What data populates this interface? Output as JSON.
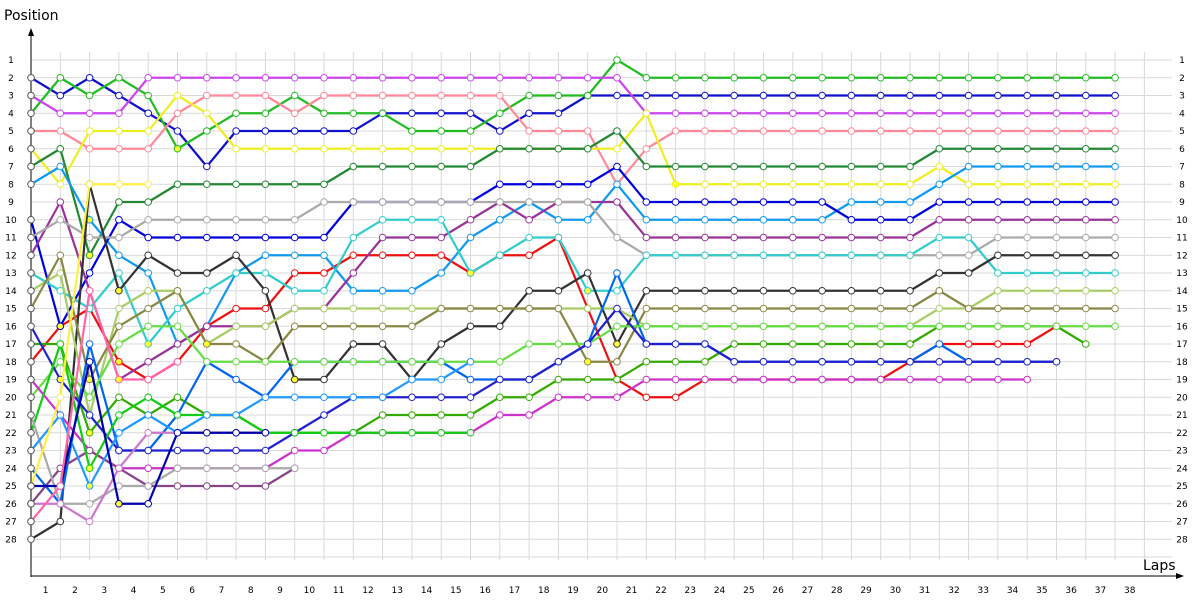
{
  "chart_data": {
    "type": "line",
    "xlabel": "Laps",
    "ylabel": "Position",
    "x_ticks": [
      "1",
      "2",
      "3",
      "4",
      "5",
      "6",
      "7",
      "8",
      "9",
      "10",
      "11",
      "12",
      "13",
      "14",
      "15",
      "16",
      "17",
      "18",
      "19",
      "20",
      "21",
      "22",
      "23",
      "24",
      "25",
      "26",
      "27",
      "28",
      "29",
      "30",
      "31",
      "32",
      "33",
      "34",
      "35",
      "36",
      "37",
      "38"
    ],
    "y_ticks": [
      "1",
      "2",
      "3",
      "4",
      "5",
      "6",
      "7",
      "8",
      "9",
      "10",
      "11",
      "12",
      "13",
      "14",
      "15",
      "16",
      "17",
      "18",
      "19",
      "20",
      "21",
      "22",
      "23",
      "24",
      "25",
      "26",
      "27",
      "28"
    ],
    "xlim": [
      0,
      38
    ],
    "ylim": [
      1,
      28
    ],
    "y_inverted": true,
    "grid": true,
    "marker_fill_running": "#ffffff",
    "marker_fill_pitstop": "#ffff33",
    "series": [
      {
        "color": "#ee1111",
        "positions": [
          18,
          16,
          15,
          18,
          19,
          18,
          16,
          15,
          15,
          13,
          13,
          12,
          12,
          12,
          12,
          13,
          12,
          12,
          11,
          15,
          19,
          20,
          20,
          19,
          19,
          19,
          19,
          19,
          19,
          19,
          18,
          17,
          17,
          17,
          17,
          16
        ]
      },
      {
        "color": "#1111cc",
        "positions": [
          2,
          3,
          2,
          3,
          4,
          5,
          7,
          5,
          5,
          5,
          5,
          5,
          4,
          4,
          4,
          4,
          5,
          4,
          4,
          3,
          3,
          3,
          3,
          3,
          3,
          3,
          3,
          3,
          3,
          3,
          3,
          3,
          3,
          3,
          3,
          3,
          3,
          3
        ]
      },
      {
        "color": "#22bb22",
        "positions": [
          4,
          2,
          3,
          2,
          3,
          6,
          5,
          4,
          4,
          3,
          4,
          4,
          4,
          5,
          5,
          5,
          4,
          3,
          3,
          3,
          1,
          2,
          2,
          2,
          2,
          2,
          2,
          2,
          2,
          2,
          2,
          2,
          2,
          2,
          2,
          2,
          2,
          2
        ]
      },
      {
        "color": "#cc44ee",
        "positions": [
          3,
          4,
          4,
          4,
          2,
          2,
          2,
          2,
          2,
          2,
          2,
          2,
          2,
          2,
          2,
          2,
          2,
          2,
          2,
          2,
          2,
          4,
          4,
          4,
          4,
          4,
          4,
          4,
          4,
          4,
          4,
          4,
          4,
          4,
          4,
          4,
          4,
          4
        ]
      },
      {
        "color": "#ff8899",
        "positions": [
          5,
          5,
          6,
          6,
          6,
          4,
          3,
          3,
          3,
          4,
          3,
          3,
          3,
          3,
          3,
          3,
          3,
          5,
          5,
          5,
          8,
          6,
          5,
          5,
          5,
          5,
          5,
          5,
          5,
          5,
          5,
          5,
          5,
          5,
          5,
          5,
          5,
          5
        ]
      },
      {
        "color": "#eeee22",
        "positions": [
          6,
          8,
          5,
          5,
          5,
          3,
          4,
          6,
          6,
          6,
          6,
          6,
          6,
          6,
          6,
          6,
          6,
          6,
          6,
          6,
          6,
          4,
          8,
          8,
          8,
          8,
          8,
          8,
          8,
          8,
          8,
          7,
          8,
          8,
          8,
          8,
          8,
          8
        ]
      },
      {
        "color": "#228833",
        "positions": [
          7,
          6,
          12,
          9,
          9,
          8,
          8,
          8,
          8,
          8,
          8,
          7,
          7,
          7,
          7,
          7,
          6,
          6,
          6,
          6,
          5,
          7,
          7,
          7,
          7,
          7,
          7,
          7,
          7,
          7,
          7,
          6,
          6,
          6,
          6,
          6,
          6,
          6
        ]
      },
      {
        "color": "#1199ee",
        "positions": [
          8,
          7,
          10,
          12,
          13,
          17,
          16,
          13,
          12,
          12,
          12,
          14,
          14,
          14,
          13,
          11,
          10,
          9,
          10,
          10,
          8,
          10,
          10,
          10,
          10,
          10,
          10,
          10,
          9,
          9,
          9,
          8,
          7,
          7,
          7,
          7,
          7,
          7
        ]
      },
      {
        "color": "#0000dd",
        "positions": [
          10,
          16,
          13,
          10,
          11,
          11,
          11,
          11,
          11,
          11,
          11,
          9,
          9,
          9,
          9,
          9,
          8,
          8,
          8,
          8,
          7,
          9,
          9,
          9,
          9,
          9,
          9,
          9,
          10,
          10,
          10,
          9,
          9,
          9,
          9,
          9,
          9,
          9
        ]
      },
      {
        "color": "#993399",
        "positions": [
          12,
          9,
          14,
          19,
          18,
          17,
          16,
          16,
          16,
          15,
          15,
          13,
          11,
          11,
          11,
          10,
          9,
          10,
          9,
          9,
          9,
          11,
          11,
          11,
          11,
          11,
          11,
          11,
          11,
          11,
          11,
          10,
          10,
          10,
          10,
          10,
          10,
          10
        ]
      },
      {
        "color": "#aaaaaa",
        "positions": [
          11,
          10,
          11,
          11,
          10,
          10,
          10,
          10,
          10,
          10,
          9,
          9,
          9,
          9,
          9,
          9,
          9,
          9,
          9,
          9,
          11,
          12,
          12,
          12,
          12,
          12,
          12,
          12,
          12,
          12,
          12,
          12,
          12,
          11,
          11,
          11,
          11,
          11
        ]
      },
      {
        "color": "#33cccc",
        "positions": [
          13,
          14,
          15,
          13,
          17,
          15,
          14,
          13,
          13,
          14,
          14,
          11,
          10,
          10,
          10,
          13,
          12,
          11,
          11,
          14,
          14,
          12,
          12,
          12,
          12,
          12,
          12,
          12,
          12,
          12,
          12,
          11,
          11,
          13,
          13,
          13,
          13,
          13
        ]
      },
      {
        "color": "#333333",
        "positions": [
          28,
          27,
          8,
          14,
          12,
          13,
          13,
          12,
          14,
          19,
          19,
          17,
          17,
          19,
          17,
          16,
          16,
          14,
          14,
          13,
          17,
          14,
          14,
          14,
          14,
          14,
          14,
          14,
          14,
          14,
          14,
          13,
          13,
          12,
          12,
          12,
          12,
          12
        ]
      },
      {
        "color": "#aacc66",
        "positions": [
          14,
          13,
          21,
          15,
          14,
          14,
          17,
          16,
          16,
          15,
          15,
          15,
          15,
          15,
          15,
          15,
          15,
          15,
          15,
          15,
          15,
          16,
          16,
          16,
          16,
          16,
          16,
          16,
          16,
          16,
          16,
          15,
          15,
          14,
          14,
          14,
          14,
          14
        ]
      },
      {
        "color": "#888844",
        "positions": [
          15,
          12,
          19,
          16,
          15,
          14,
          17,
          17,
          18,
          16,
          16,
          16,
          16,
          16,
          15,
          15,
          15,
          15,
          15,
          18,
          18,
          15,
          15,
          15,
          15,
          15,
          15,
          15,
          15,
          15,
          15,
          14,
          15,
          15,
          15,
          15,
          15,
          15
        ]
      },
      {
        "color": "#33aa00",
        "positions": [
          17,
          17,
          22,
          20,
          21,
          20,
          21,
          21,
          22,
          22,
          22,
          22,
          21,
          21,
          21,
          21,
          20,
          20,
          19,
          19,
          19,
          18,
          18,
          18,
          17,
          17,
          17,
          17,
          17,
          17,
          17,
          16,
          16,
          16,
          16,
          16,
          17
        ]
      },
      {
        "color": "#0066ee",
        "positions": [
          24,
          26,
          17,
          23,
          23,
          21,
          18,
          19,
          20,
          18,
          18,
          18,
          18,
          18,
          18,
          19,
          19,
          19,
          18,
          17,
          13,
          17,
          17,
          17,
          18,
          18,
          18,
          18,
          18,
          18,
          18,
          17,
          18,
          18,
          18,
          18
        ]
      },
      {
        "color": "#66dd44",
        "positions": [
          20,
          18,
          20,
          17,
          16,
          16,
          18,
          18,
          18,
          18,
          18,
          18,
          18,
          18,
          18,
          18,
          18,
          17,
          17,
          17,
          16,
          16,
          16,
          16,
          16,
          16,
          16,
          16,
          16,
          16,
          16,
          16,
          16,
          16,
          16,
          16,
          16,
          16
        ]
      },
      {
        "color": "#2222cc",
        "positions": [
          16,
          19,
          21,
          23,
          23,
          23,
          23,
          23,
          23,
          22,
          21,
          20,
          20,
          20,
          20,
          20,
          19,
          19,
          18,
          17,
          15,
          17,
          17,
          17,
          18,
          18,
          18,
          18,
          18,
          18,
          18,
          18,
          18,
          18,
          18,
          18
        ]
      },
      {
        "color": "#cc33cc",
        "positions": [
          19,
          21,
          23,
          24,
          24,
          24,
          24,
          24,
          24,
          23,
          23,
          22,
          22,
          22,
          22,
          22,
          21,
          21,
          20,
          20,
          20,
          19,
          19,
          19,
          19,
          19,
          19,
          19,
          19,
          19,
          19,
          19,
          19,
          19,
          19
        ]
      },
      {
        "color": "#884488",
        "positions": [
          26,
          24,
          23,
          24,
          25,
          25,
          25,
          25,
          25,
          24
        ]
      },
      {
        "color": "#11cc11",
        "positions": [
          22,
          17,
          24,
          21,
          20,
          21,
          21,
          21,
          22,
          22,
          22,
          22,
          22,
          22,
          22,
          22
        ]
      },
      {
        "color": "#aaaaaa",
        "positions": [
          21,
          26,
          26,
          25,
          25,
          24,
          24,
          24,
          24,
          24
        ]
      },
      {
        "color": "#2299ff",
        "positions": [
          23,
          21,
          25,
          22,
          21,
          22,
          21,
          21,
          20,
          20,
          20,
          20,
          20,
          19,
          19,
          18
        ]
      },
      {
        "color": "#cc77cc",
        "positions": [
          26,
          26,
          27,
          24,
          22,
          22,
          22,
          22,
          22
        ]
      },
      {
        "color": "#ffee44",
        "positions": [
          25,
          20,
          8,
          8,
          8
        ]
      },
      {
        "color": "#0000aa",
        "positions": [
          25,
          25,
          18,
          26,
          26,
          22,
          22,
          22,
          22
        ]
      },
      {
        "color": "#ff66aa",
        "positions": [
          27,
          25,
          14,
          19,
          19,
          18
        ]
      }
    ]
  }
}
